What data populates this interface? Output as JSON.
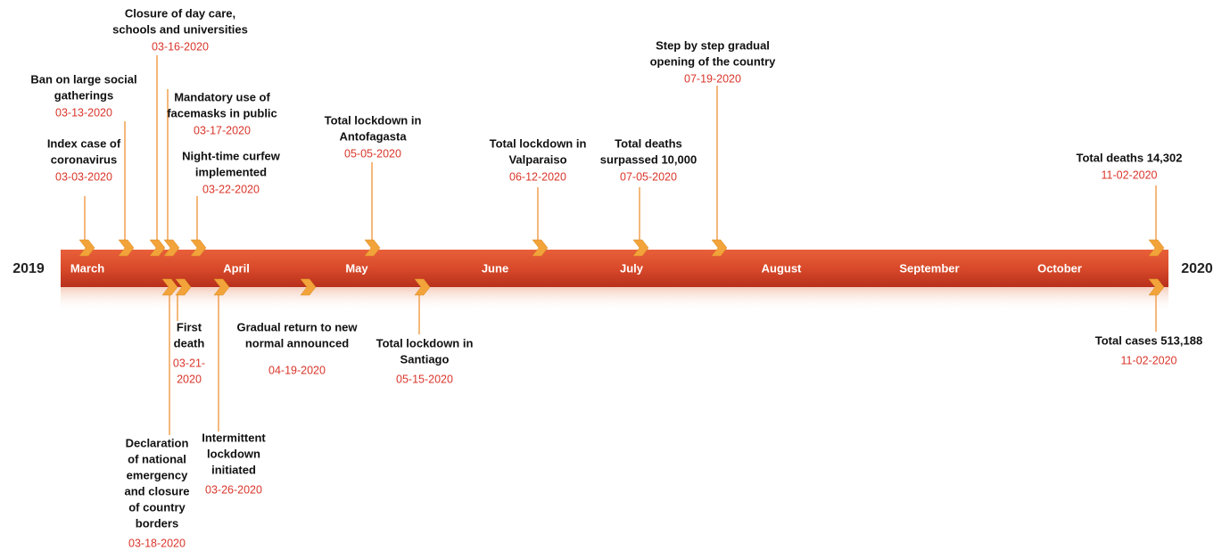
{
  "timeline": {
    "start_year": "2019",
    "end_year": "2020",
    "months": [
      "March",
      "April",
      "May",
      "June",
      "July",
      "August",
      "September",
      "October"
    ],
    "events_above": [
      {
        "label": [
          "Index case of",
          "coronavirus"
        ],
        "date": [
          "03-03-2020"
        ]
      },
      {
        "label": [
          "Ban on large social",
          "gatherings"
        ],
        "date": [
          "03-13-2020"
        ]
      },
      {
        "label": [
          "Closure of day care,",
          "schools and universities"
        ],
        "date": [
          "03-16-2020"
        ]
      },
      {
        "label": [
          "Mandatory use of",
          "facemasks in public"
        ],
        "date": [
          "03-17-2020"
        ]
      },
      {
        "label": [
          "Night-time curfew",
          "implemented"
        ],
        "date": [
          "03-22-2020"
        ]
      },
      {
        "label": [
          "Total lockdown in",
          "Antofagasta"
        ],
        "date": [
          "05-05-2020"
        ]
      },
      {
        "label": [
          "Total lockdown in",
          "Valparaiso"
        ],
        "date": [
          "06-12-2020"
        ]
      },
      {
        "label": [
          "Total deaths",
          "surpassed 10,000"
        ],
        "date": [
          "07-05-2020"
        ]
      },
      {
        "label": [
          "Step by step gradual",
          "opening  of the country"
        ],
        "date": [
          "07-19-2020"
        ]
      },
      {
        "label": [
          "Total deaths 14,302"
        ],
        "date": [
          "11-02-2020"
        ]
      }
    ],
    "events_below": [
      {
        "label": [
          "First",
          "death"
        ],
        "date": [
          "03-21-",
          "2020"
        ]
      },
      {
        "label": [
          "Declaration",
          "of national",
          "emergency",
          "and closure",
          "of country",
          "borders"
        ],
        "date": [
          "03-18-2020"
        ]
      },
      {
        "label": [
          "Intermittent",
          "lockdown",
          "initiated"
        ],
        "date": [
          "03-26-2020"
        ]
      },
      {
        "label": [
          "Gradual return to new",
          "normal announced"
        ],
        "date": [
          "04-19-2020"
        ]
      },
      {
        "label": [
          "Total lockdown in",
          "Santiago"
        ],
        "date": [
          "05-15-2020"
        ]
      },
      {
        "label": [
          "Total cases 513,188"
        ],
        "date": [
          "11-02-2020"
        ]
      }
    ]
  }
}
